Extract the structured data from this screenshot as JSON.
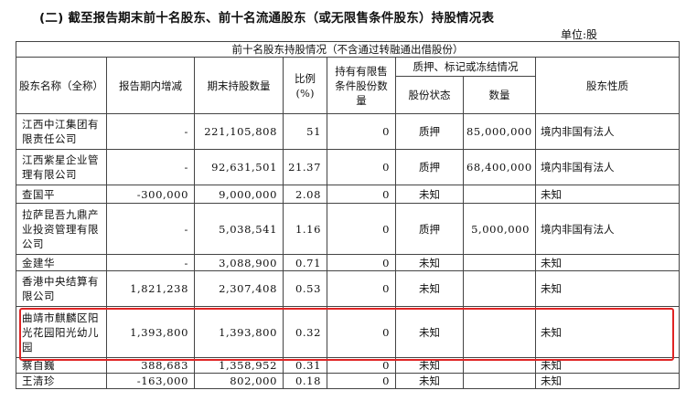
{
  "title": "(二) 截至报告期末前十名股东、前十名流通股东（或无限售条件股东）持股情况表",
  "unit": "单位:股",
  "caption": "前十名股东持股情况（不含通过转融通出借股份）",
  "headers": {
    "name": "股东名称（全称）",
    "change": "报告期内增减",
    "holding": "期末持股数量",
    "ratio": "比例(%)",
    "restricted": "持有有限售条件股份数量",
    "pledge_group": "质押、标记或冻结情况",
    "pledge_status": "股份状态",
    "pledge_qty": "数量",
    "nature": "股东性质"
  },
  "rows": [
    {
      "name": "江西中江集团有限责任公司",
      "change": "-",
      "holding": "221,105,808",
      "ratio": "51",
      "restricted": "0",
      "status": "质押",
      "qty": "85,000,000",
      "nature": "境内非国有法人"
    },
    {
      "name": "江西紫星企业管理有限公司",
      "change": "-",
      "holding": "92,631,501",
      "ratio": "21.37",
      "restricted": "0",
      "status": "质押",
      "qty": "68,400,000",
      "nature": "境内非国有法人"
    },
    {
      "name": "查国平",
      "change": "-300,000",
      "holding": "9,000,000",
      "ratio": "2.08",
      "restricted": "0",
      "status": "未知",
      "qty": "",
      "nature": "未知"
    },
    {
      "name": "拉萨昆吾九鼎产业投资管理有限公司",
      "change": "-",
      "holding": "5,038,541",
      "ratio": "1.16",
      "restricted": "0",
      "status": "质押",
      "qty": "5,000,000",
      "nature": "境内非国有法人"
    },
    {
      "name": "金建华",
      "change": "-",
      "holding": "3,088,900",
      "ratio": "0.71",
      "restricted": "0",
      "status": "未知",
      "qty": "",
      "nature": "未知"
    },
    {
      "name": "香港中央结算有限公司",
      "change": "1,821,238",
      "holding": "2,307,408",
      "ratio": "0.53",
      "restricted": "0",
      "status": "未知",
      "qty": "",
      "nature": "未知"
    },
    {
      "name": "曲靖市麒麟区阳光花园阳光幼儿园",
      "change": "1,393,800",
      "holding": "1,393,800",
      "ratio": "0.32",
      "restricted": "0",
      "status": "未知",
      "qty": "",
      "nature": "未知"
    },
    {
      "name": "蔡自巍",
      "change": "388,683",
      "holding": "1,358,952",
      "ratio": "0.31",
      "restricted": "0",
      "status": "未知",
      "qty": "",
      "nature": "未知"
    },
    {
      "name": "王清珍",
      "change": "-163,000",
      "holding": "802,000",
      "ratio": "0.18",
      "restricted": "0",
      "status": "未知",
      "qty": "",
      "nature": "未知"
    }
  ],
  "highlight_color": "#e02424"
}
